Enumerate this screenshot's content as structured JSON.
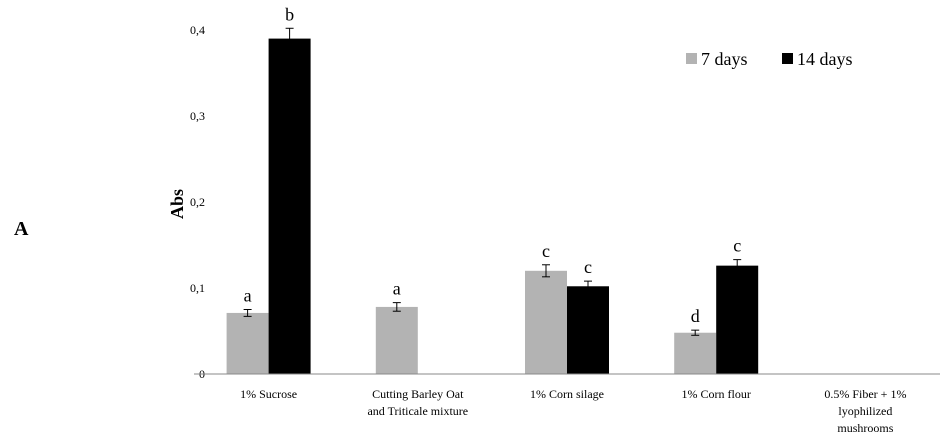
{
  "panel_label": "A",
  "chart_data": {
    "type": "bar",
    "ylabel": "Abs",
    "ylim": [
      0,
      0.4
    ],
    "yticks": [
      {
        "value": 0,
        "label": "0"
      },
      {
        "value": 0.1,
        "label": "0,1"
      },
      {
        "value": 0.2,
        "label": "0,2"
      },
      {
        "value": 0.3,
        "label": "0,3"
      },
      {
        "value": 0.4,
        "label": "0,4"
      }
    ],
    "categories": [
      [
        "1% Sucrose"
      ],
      [
        "Cutting Barley Oat",
        "and Triticale mixture"
      ],
      [
        "1% Corn silage"
      ],
      [
        "1% Corn flour"
      ],
      [
        "0.5% Fiber + 1%",
        "lyophilized",
        "mushrooms"
      ]
    ],
    "series": [
      {
        "name": "7 days",
        "color": "#b3b3b3",
        "values": [
          0.071,
          0.078,
          0.12,
          0.048,
          null
        ],
        "errors": [
          0.004,
          0.005,
          0.007,
          0.003,
          null
        ],
        "labels": [
          "a",
          "a",
          "c",
          "d",
          ""
        ]
      },
      {
        "name": "14 days",
        "color": "#000000",
        "values": [
          0.39,
          null,
          0.102,
          0.126,
          null
        ],
        "errors": [
          0.012,
          null,
          0.006,
          0.007,
          null
        ],
        "labels": [
          "b",
          "",
          "c",
          "c",
          ""
        ]
      }
    ],
    "legend": "top-right",
    "grid": false
  }
}
